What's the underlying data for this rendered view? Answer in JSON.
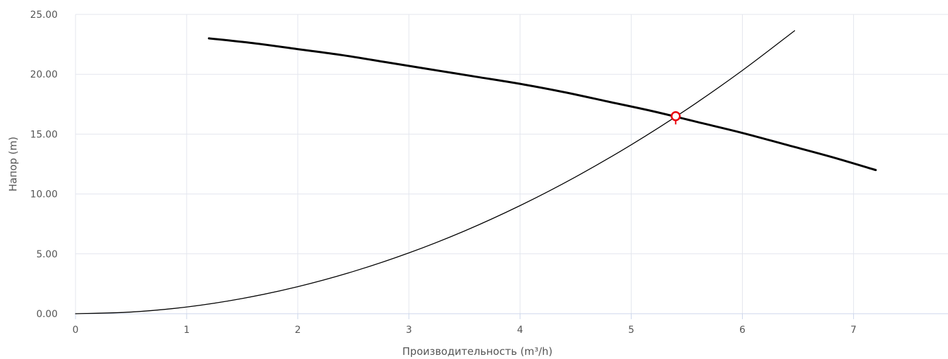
{
  "chart_data": {
    "type": "line",
    "xlabel": "Производительность (m³/h)",
    "ylabel": "Напор (m)",
    "xlim": [
      0,
      7.85
    ],
    "ylim": [
      0,
      25
    ],
    "x_ticks": [
      "0",
      "1",
      "2",
      "3",
      "4",
      "5",
      "6",
      "7"
    ],
    "y_ticks": [
      "0.00",
      "5.00",
      "10.00",
      "15.00",
      "20.00",
      "25.00"
    ],
    "grid": true,
    "legend": "none",
    "series": [
      {
        "style": "thick",
        "color": "#000000",
        "x": [
          1.2,
          1.6,
          2.0,
          2.4,
          2.8,
          3.2,
          3.6,
          4.0,
          4.4,
          4.8,
          5.2,
          5.6,
          6.0,
          6.4,
          6.8,
          7.2
        ],
        "y": [
          23.0,
          22.6,
          22.1,
          21.6,
          21.0,
          20.4,
          19.8,
          19.2,
          18.5,
          17.7,
          16.9,
          16.0,
          15.1,
          14.1,
          13.1,
          12.0
        ]
      },
      {
        "style": "thin",
        "color": "#000000",
        "x": [
          0,
          0.5,
          1.0,
          1.5,
          2.0,
          2.5,
          3.0,
          3.5,
          4.0,
          4.5,
          5.0,
          5.5,
          6.0,
          6.47
        ],
        "y": [
          0,
          0.14,
          0.56,
          1.27,
          2.26,
          3.53,
          5.08,
          6.91,
          9.03,
          11.43,
          14.11,
          17.07,
          20.32,
          23.64
        ]
      }
    ],
    "marker": {
      "x": 5.4,
      "y": 16.5,
      "color": "#e8000b"
    }
  }
}
